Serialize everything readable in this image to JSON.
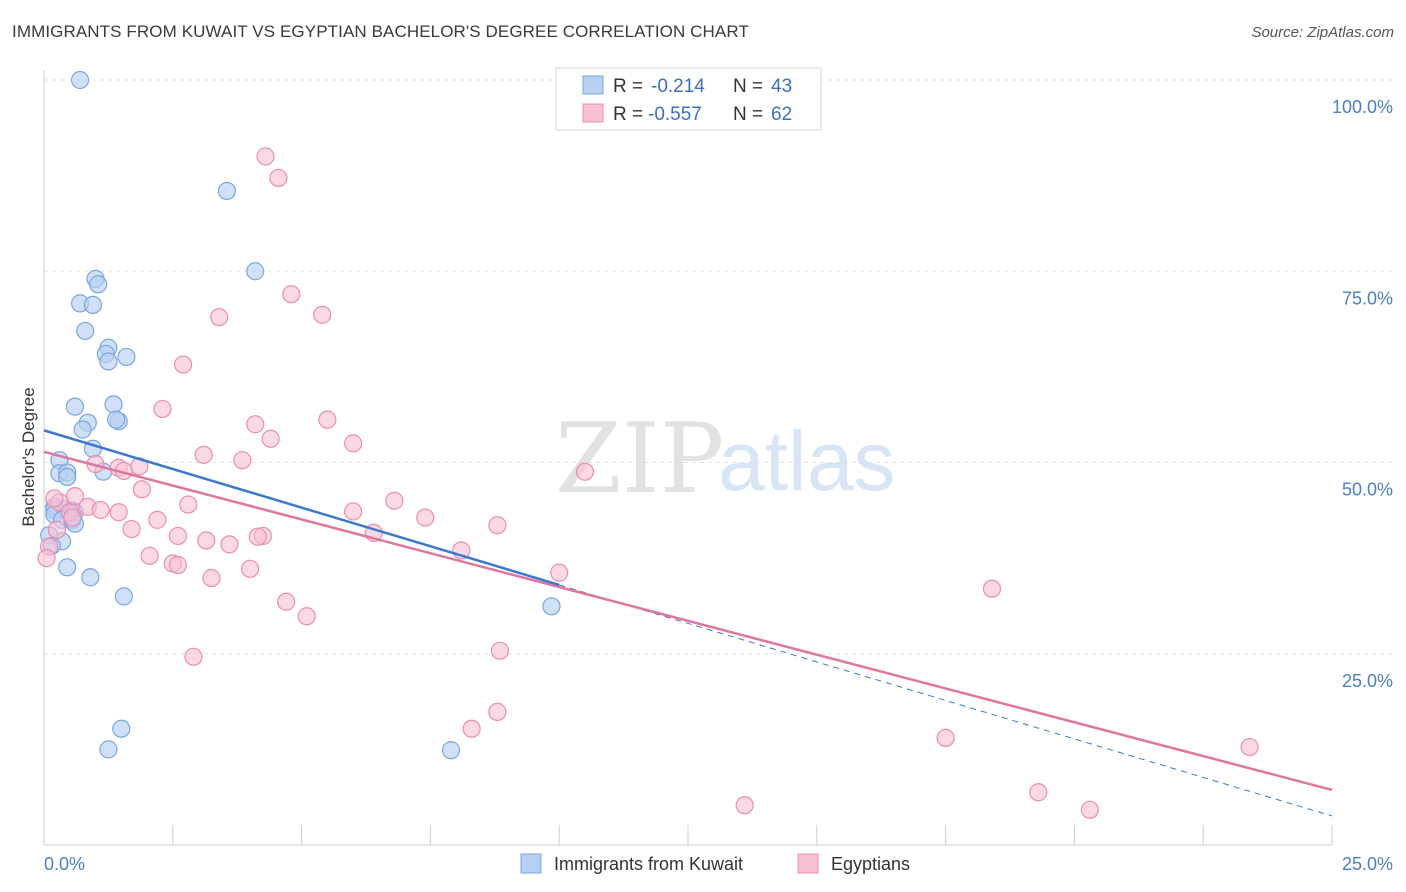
{
  "header": {
    "title": "IMMIGRANTS FROM KUWAIT VS EGYPTIAN BACHELOR'S DEGREE CORRELATION CHART",
    "source": "Source: ZipAtlas.com"
  },
  "watermark": {
    "zip": "ZIP",
    "atlas": "atlas"
  },
  "colors": {
    "blue_fill": "#b7d0f2",
    "blue_stroke": "#7aa6e0",
    "blue_line": "#3b78d0",
    "pink_fill": "#f7c0d3",
    "pink_stroke": "#ea8eae",
    "pink_line": "#e0769e",
    "tick": "#4a7fc4"
  },
  "legend": {
    "rows": [
      {
        "r_label": "R =",
        "r_value": "-0.214",
        "n_label": "N =",
        "n_value": "43"
      },
      {
        "r_label": "R =",
        "r_value": "-0.557",
        "n_label": "N =",
        "n_value": "62"
      }
    ]
  },
  "chart_data": {
    "type": "scatter",
    "title": "IMMIGRANTS FROM KUWAIT VS EGYPTIAN BACHELOR'S DEGREE CORRELATION CHART",
    "xlabel": "",
    "ylabel": "Bachelor's Degree",
    "xlim": [
      0,
      25
    ],
    "ylim": [
      0,
      103
    ],
    "x_tick_labels": [
      "0.0%",
      "25.0%"
    ],
    "y_ticks": [
      25,
      50,
      75,
      100
    ],
    "y_tick_labels": [
      "25.0%",
      "50.0%",
      "75.0%",
      "100.0%"
    ],
    "grid": "horizontal-dashed",
    "legend_placement": "top-center",
    "series": [
      {
        "name": "Immigrants from Kuwait",
        "color": "#b7d0f2",
        "r": -0.214,
        "n": 43,
        "trend": {
          "x": [
            0,
            10
          ],
          "y": [
            54.2,
            34.0
          ],
          "extend_to_x": 25,
          "extend_to_y": 3.8
        },
        "points": [
          [
            0.7,
            100
          ],
          [
            3.55,
            85.5
          ],
          [
            4.1,
            75
          ],
          [
            1.0,
            74
          ],
          [
            1.05,
            73.3
          ],
          [
            0.7,
            70.8
          ],
          [
            0.95,
            70.6
          ],
          [
            0.8,
            67.2
          ],
          [
            1.25,
            65
          ],
          [
            1.2,
            64.2
          ],
          [
            1.6,
            63.8
          ],
          [
            1.25,
            63.2
          ],
          [
            1.35,
            57.6
          ],
          [
            0.6,
            57.3
          ],
          [
            0.85,
            55.2
          ],
          [
            1.45,
            55.4
          ],
          [
            1.4,
            55.6
          ],
          [
            0.75,
            54.3
          ],
          [
            0.95,
            51.8
          ],
          [
            0.3,
            50.3
          ],
          [
            1.15,
            48.8
          ],
          [
            0.3,
            48.6
          ],
          [
            0.45,
            48.7
          ],
          [
            0.45,
            48.1
          ],
          [
            0.2,
            44.2
          ],
          [
            0.2,
            43.8
          ],
          [
            0.4,
            43.9
          ],
          [
            0.55,
            43.7
          ],
          [
            0.6,
            43.5
          ],
          [
            0.2,
            43.2
          ],
          [
            0.35,
            42.5
          ],
          [
            0.55,
            42.5
          ],
          [
            0.6,
            42.0
          ],
          [
            0.35,
            39.7
          ],
          [
            0.45,
            36.3
          ],
          [
            0.9,
            35
          ],
          [
            1.55,
            32.5
          ],
          [
            9.85,
            31.2
          ],
          [
            1.5,
            15.2
          ],
          [
            1.25,
            12.5
          ],
          [
            7.9,
            12.4
          ],
          [
            0.1,
            40.5
          ],
          [
            0.15,
            39.1
          ]
        ]
      },
      {
        "name": "Egyptians",
        "color": "#f7c0d3",
        "r": -0.557,
        "n": 62,
        "trend": {
          "x": [
            0,
            25
          ],
          "y": [
            51.4,
            7.2
          ]
        },
        "points": [
          [
            4.3,
            90
          ],
          [
            4.55,
            87.2
          ],
          [
            4.8,
            72
          ],
          [
            3.4,
            69
          ],
          [
            5.4,
            69.3
          ],
          [
            2.7,
            62.8
          ],
          [
            2.3,
            57
          ],
          [
            4.1,
            55
          ],
          [
            5.5,
            55.6
          ],
          [
            4.4,
            53.1
          ],
          [
            6.0,
            52.5
          ],
          [
            3.1,
            51
          ],
          [
            3.85,
            50.3
          ],
          [
            1.85,
            49.5
          ],
          [
            1.45,
            49.3
          ],
          [
            1.0,
            49.8
          ],
          [
            1.55,
            48.9
          ],
          [
            10.5,
            48.8
          ],
          [
            1.9,
            46.5
          ],
          [
            0.6,
            45.6
          ],
          [
            0.3,
            44.8
          ],
          [
            2.8,
            44.5
          ],
          [
            0.85,
            44.2
          ],
          [
            6.8,
            45
          ],
          [
            1.1,
            43.8
          ],
          [
            0.5,
            43.5
          ],
          [
            1.45,
            43.5
          ],
          [
            6.0,
            43.6
          ],
          [
            7.4,
            42.8
          ],
          [
            2.2,
            42.5
          ],
          [
            0.55,
            42.8
          ],
          [
            1.7,
            41.3
          ],
          [
            8.8,
            41.8
          ],
          [
            6.4,
            40.8
          ],
          [
            2.6,
            40.4
          ],
          [
            4.25,
            40.4
          ],
          [
            3.15,
            39.8
          ],
          [
            3.6,
            39.3
          ],
          [
            2.05,
            37.8
          ],
          [
            8.1,
            38.5
          ],
          [
            2.5,
            36.8
          ],
          [
            2.6,
            36.6
          ],
          [
            4.0,
            36.1
          ],
          [
            10.0,
            35.6
          ],
          [
            3.25,
            34.9
          ],
          [
            0.1,
            39.0
          ],
          [
            0.05,
            37.5
          ],
          [
            4.7,
            31.8
          ],
          [
            5.1,
            29.9
          ],
          [
            18.4,
            33.5
          ],
          [
            2.9,
            24.6
          ],
          [
            8.85,
            25.4
          ],
          [
            8.8,
            17.4
          ],
          [
            8.3,
            15.2
          ],
          [
            17.5,
            14.0
          ],
          [
            23.4,
            12.8
          ],
          [
            13.6,
            5.2
          ],
          [
            19.3,
            6.9
          ],
          [
            20.3,
            4.6
          ],
          [
            0.2,
            45.3
          ],
          [
            0.25,
            41.2
          ],
          [
            4.15,
            40.3
          ]
        ]
      }
    ]
  }
}
